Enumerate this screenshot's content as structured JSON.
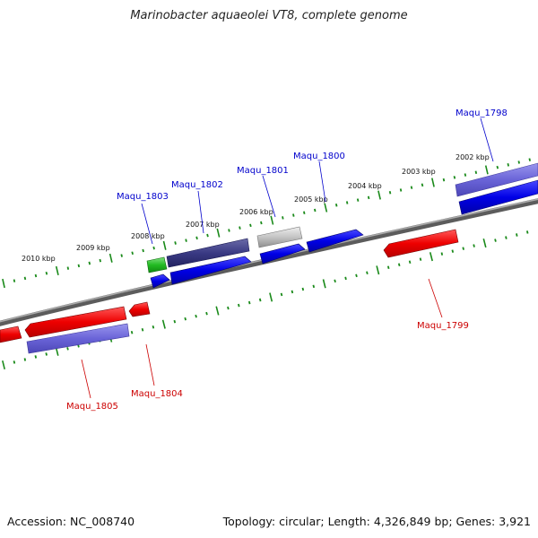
{
  "title": "Marinobacter aquaeolei VT8, complete genome",
  "footer": {
    "accession": "Accession: NC_008740",
    "topology": "Topology: circular; Length: 4,326,849 bp; Genes: 3,921"
  },
  "ruler": {
    "upper_labels": [
      "2010 kbp",
      "2009 kbp",
      "2008 kbp",
      "2007 kbp",
      "2006 kbp",
      "2005 kbp",
      "2004 kbp",
      "2003 kbp",
      "2002 kbp"
    ]
  },
  "colors": {
    "forward_label": "#0000cc",
    "reverse_label": "#cc0000",
    "backbone": "#808080",
    "ticks": "#1a8a1a"
  },
  "genes": {
    "forward": [
      {
        "label": "Maqu_1798"
      },
      {
        "label": "Maqu_1800"
      },
      {
        "label": "Maqu_1801"
      },
      {
        "label": "Maqu_1802"
      },
      {
        "label": "Maqu_1803"
      }
    ],
    "reverse": [
      {
        "label": "Maqu_1799"
      },
      {
        "label": "Maqu_1804"
      },
      {
        "label": "Maqu_1805"
      }
    ]
  }
}
